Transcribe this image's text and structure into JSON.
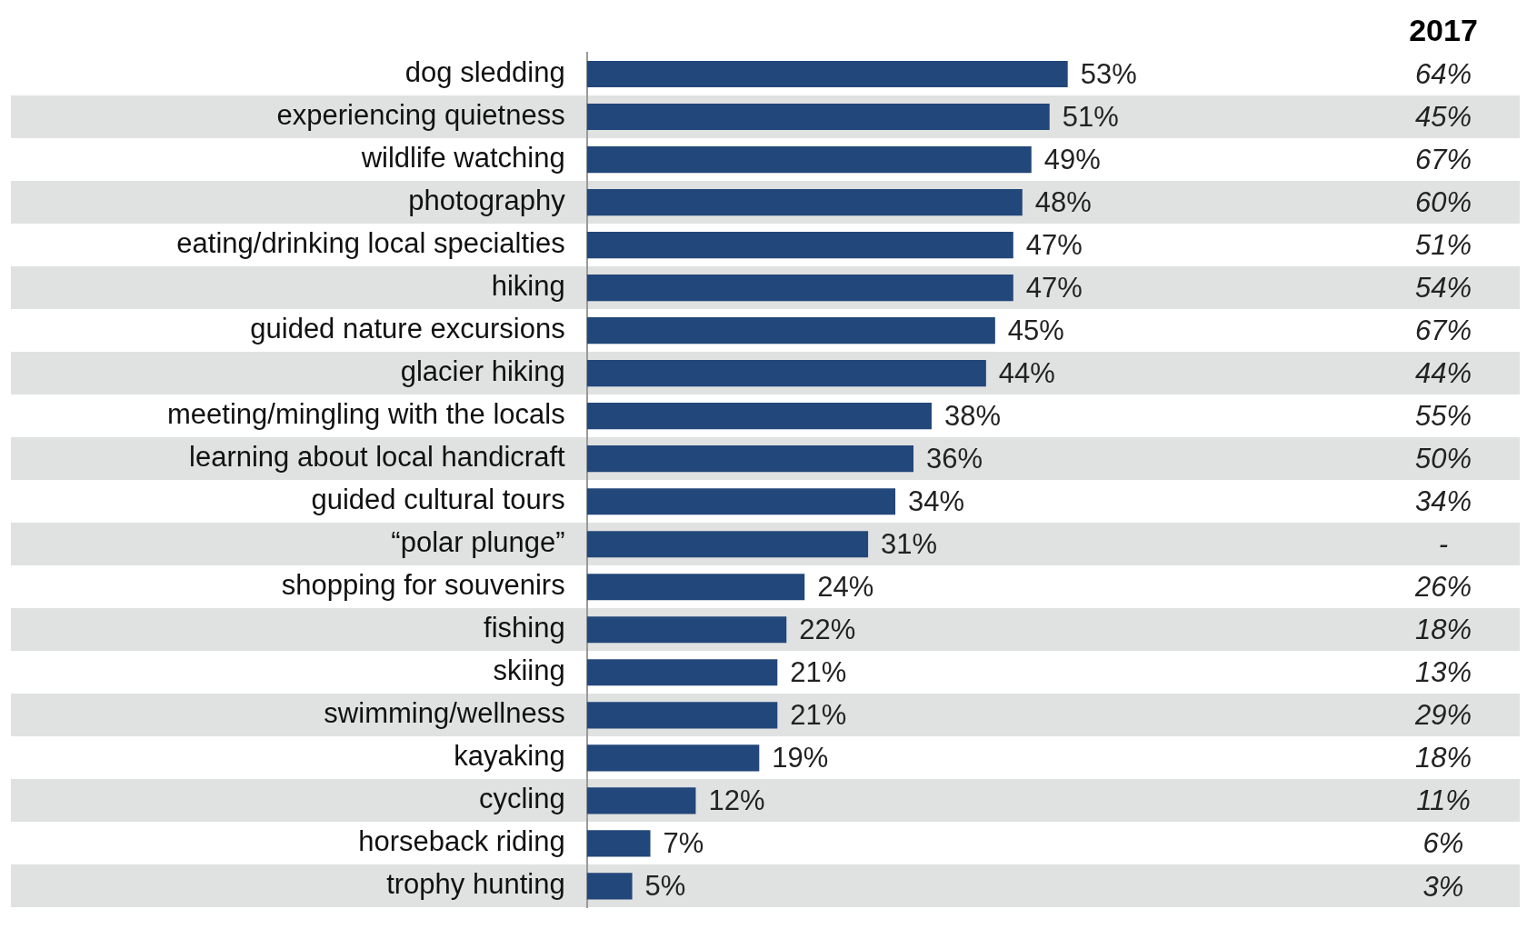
{
  "chart_data": {
    "type": "bar",
    "orientation": "horizontal",
    "categories": [
      "dog sledding",
      "experiencing quietness",
      "wildlife watching",
      "photography",
      "eating/drinking local specialties",
      "hiking",
      "guided nature excursions",
      "glacier hiking",
      "meeting/mingling with the locals",
      "learning about local handicraft",
      "guided cultural tours",
      "“polar plunge”",
      "shopping for souvenirs",
      "fishing",
      "skiing",
      "swimming/wellness",
      "kayaking",
      "cycling",
      "horseback riding",
      "trophy hunting"
    ],
    "series": [
      {
        "color": "#22477a",
        "values": [
          53,
          51,
          49,
          48,
          47,
          47,
          45,
          44,
          38,
          36,
          34,
          31,
          24,
          22,
          21,
          21,
          19,
          12,
          7,
          5
        ],
        "value_labels": [
          "53%",
          "51%",
          "49%",
          "48%",
          "47%",
          "47%",
          "45%",
          "44%",
          "38%",
          "36%",
          "34%",
          "31%",
          "24%",
          "22%",
          "21%",
          "21%",
          "19%",
          "12%",
          "7%",
          "5%"
        ]
      }
    ],
    "annotations": [
      "2017",
      "64%",
      "45%",
      "67%",
      "60%",
      "51%",
      "54%",
      "67%",
      "44%",
      "55%",
      "50%",
      "34%",
      "-",
      "26%",
      "18%",
      "13%",
      "29%",
      "18%",
      "11%",
      "6%",
      "3%"
    ],
    "legend": false
  }
}
